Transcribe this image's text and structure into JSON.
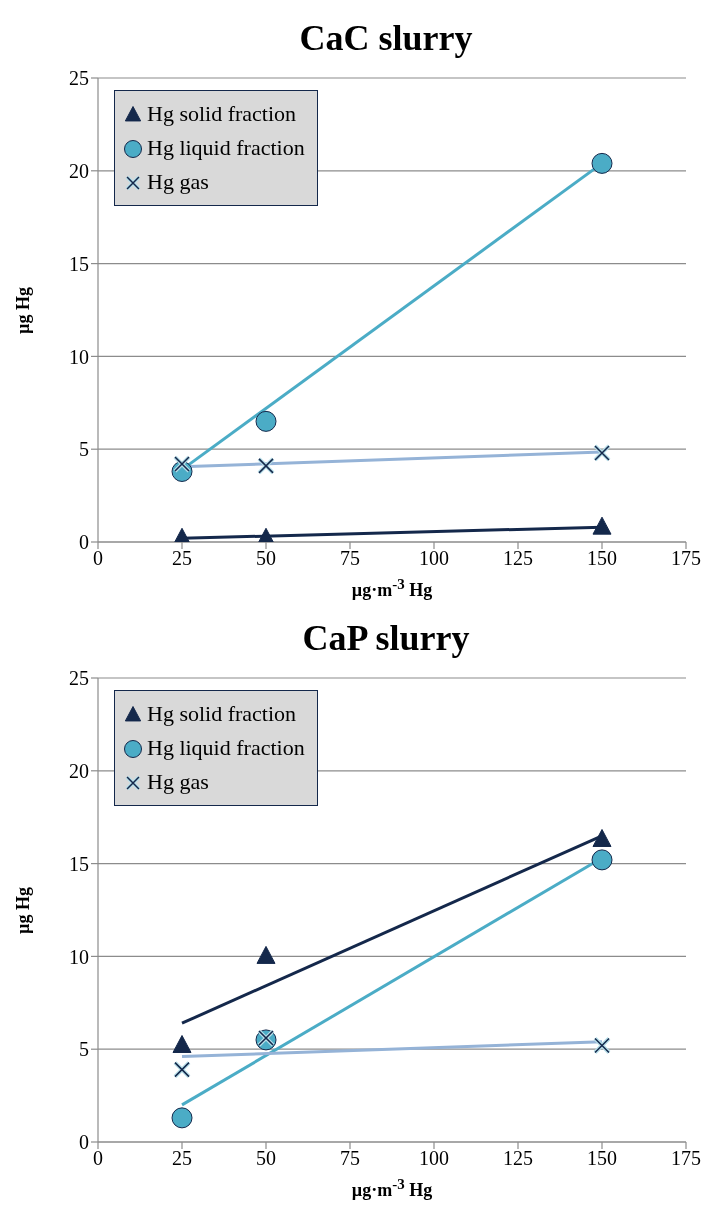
{
  "chart_data": [
    {
      "type": "scatter",
      "title": "CaC slurry",
      "xlabel": "µg·m$^{-3}$ Hg",
      "ylabel": "µg Hg",
      "xlim": [
        0,
        175
      ],
      "xticks": [
        0,
        25,
        50,
        75,
        100,
        125,
        150,
        175
      ],
      "ylim": [
        0,
        25
      ],
      "yticks": [
        0,
        5,
        10,
        15,
        20,
        25
      ],
      "grid": "y",
      "legend": "top left",
      "series": [
        {
          "name": "Hg solid fraction",
          "type": "scatter",
          "marker": "triangle",
          "color": "#14284b",
          "x": [
            25,
            50,
            150
          ],
          "values": [
            0.2,
            0.2,
            0.8
          ]
        },
        {
          "name": "Hg liquid fraction",
          "type": "scatter",
          "marker": "circle",
          "color": "#4bacc6",
          "x": [
            25,
            50,
            150
          ],
          "values": [
            3.8,
            6.5,
            20.4
          ]
        },
        {
          "name": "Hg gas",
          "type": "scatter",
          "marker": "cross",
          "color": "#b7dee8",
          "x": [
            25,
            50,
            150
          ],
          "values": [
            4.2,
            4.1,
            4.8
          ]
        },
        {
          "type": "line",
          "color": "#14284b",
          "x": [
            25,
            150
          ],
          "values": [
            0.2,
            0.8
          ]
        },
        {
          "type": "line",
          "color": "#4bacc6",
          "x": [
            25,
            150
          ],
          "values": [
            3.9,
            20.4
          ]
        },
        {
          "type": "line",
          "color": "#95b3d7",
          "x": [
            25,
            150
          ],
          "values": [
            4.05,
            4.85
          ]
        }
      ]
    },
    {
      "type": "scatter",
      "title": "CaP slurry",
      "xlabel": "µg·m$^{-3}$ Hg",
      "ylabel": "µg Hg",
      "xlim": [
        0,
        175
      ],
      "xticks": [
        0,
        25,
        50,
        75,
        100,
        125,
        150,
        175
      ],
      "ylim": [
        0,
        25
      ],
      "yticks": [
        0,
        5,
        10,
        15,
        20,
        25
      ],
      "grid": "y",
      "legend": "top left",
      "series": [
        {
          "name": "Hg solid fraction",
          "type": "scatter",
          "marker": "triangle",
          "color": "#14284b",
          "x": [
            25,
            50,
            150
          ],
          "values": [
            5.2,
            10.0,
            16.3
          ]
        },
        {
          "name": "Hg liquid fraction",
          "type": "scatter",
          "marker": "circle",
          "color": "#4bacc6",
          "x": [
            25,
            50,
            150
          ],
          "values": [
            1.3,
            5.5,
            15.2
          ]
        },
        {
          "name": "Hg gas",
          "type": "scatter",
          "marker": "cross",
          "color": "#b7dee8",
          "x": [
            25,
            50,
            150
          ],
          "values": [
            3.9,
            5.6,
            5.2
          ]
        },
        {
          "type": "line",
          "color": "#14284b",
          "x": [
            25,
            150
          ],
          "values": [
            6.4,
            16.5
          ]
        },
        {
          "type": "line",
          "color": "#4bacc6",
          "x": [
            25,
            150
          ],
          "values": [
            2.0,
            15.3
          ]
        },
        {
          "type": "line",
          "color": "#95b3d7",
          "x": [
            25,
            150
          ],
          "values": [
            4.6,
            5.4
          ]
        }
      ]
    }
  ]
}
